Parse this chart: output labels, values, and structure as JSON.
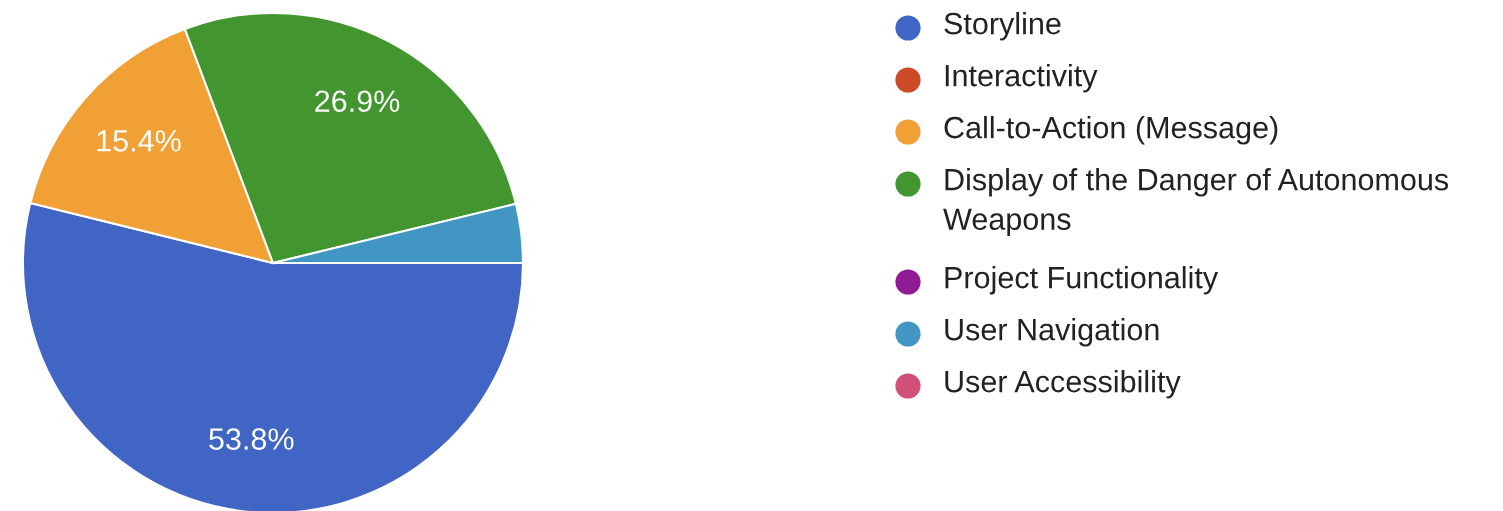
{
  "chart_data": {
    "type": "pie",
    "categories": [
      "Storyline",
      "Interactivity",
      "Call-to-Action (Message)",
      "Display of the Danger of Autonomous Weapons",
      "Project Functionality",
      "User Navigation",
      "User Accessibility"
    ],
    "values": [
      53.8,
      0,
      15.4,
      26.9,
      0,
      3.8,
      0
    ],
    "value_labels": [
      "53.8%",
      null,
      "15.4%",
      "26.9%",
      null,
      null,
      null
    ],
    "colors": [
      "#4065c4",
      "#cc4a25",
      "#f0a035",
      "#43962f",
      "#8e1b94",
      "#4196c4",
      "#d24f78"
    ],
    "legend": "right"
  }
}
